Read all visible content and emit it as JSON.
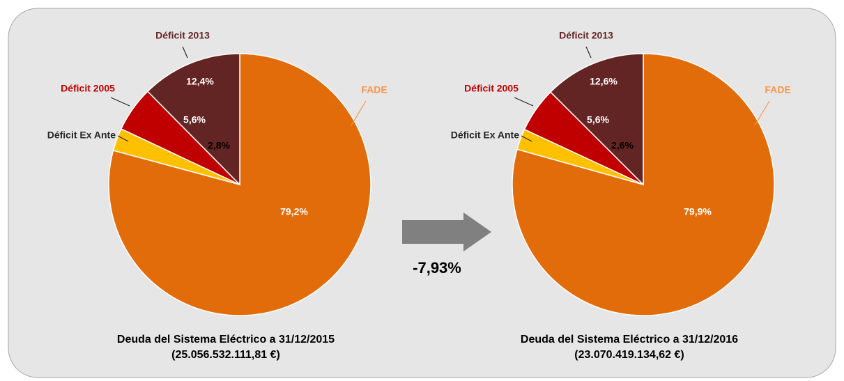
{
  "chart_data": [
    {
      "type": "pie",
      "title": "Deuda del Sistema Eléctrico a 31/12/2015",
      "subtitle": "(25.056.532.111,81 €)",
      "categories": [
        "FADE",
        "Déficit Ex Ante",
        "Déficit 2005",
        "Déficit 2013"
      ],
      "values": [
        79.2,
        2.8,
        5.6,
        12.4
      ],
      "value_labels": [
        "79,2%",
        "2,8%",
        "5,6%",
        "12,4%"
      ],
      "colors": [
        "#e36c0a",
        "#ffc000",
        "#c00000",
        "#632523"
      ]
    },
    {
      "type": "pie",
      "title": "Deuda del Sistema Eléctrico a 31/12/2016",
      "subtitle": "(23.070.419.134,62 €)",
      "categories": [
        "FADE",
        "Déficit Ex Ante",
        "Déficit 2005",
        "Déficit 2013"
      ],
      "values": [
        79.9,
        2.6,
        5.6,
        12.6
      ],
      "value_labels": [
        "79,9%",
        "2,6%",
        "5,6%",
        "12,6%"
      ],
      "colors": [
        "#e36c0a",
        "#ffc000",
        "#c00000",
        "#632523"
      ]
    }
  ],
  "annotation": "-7,93%"
}
